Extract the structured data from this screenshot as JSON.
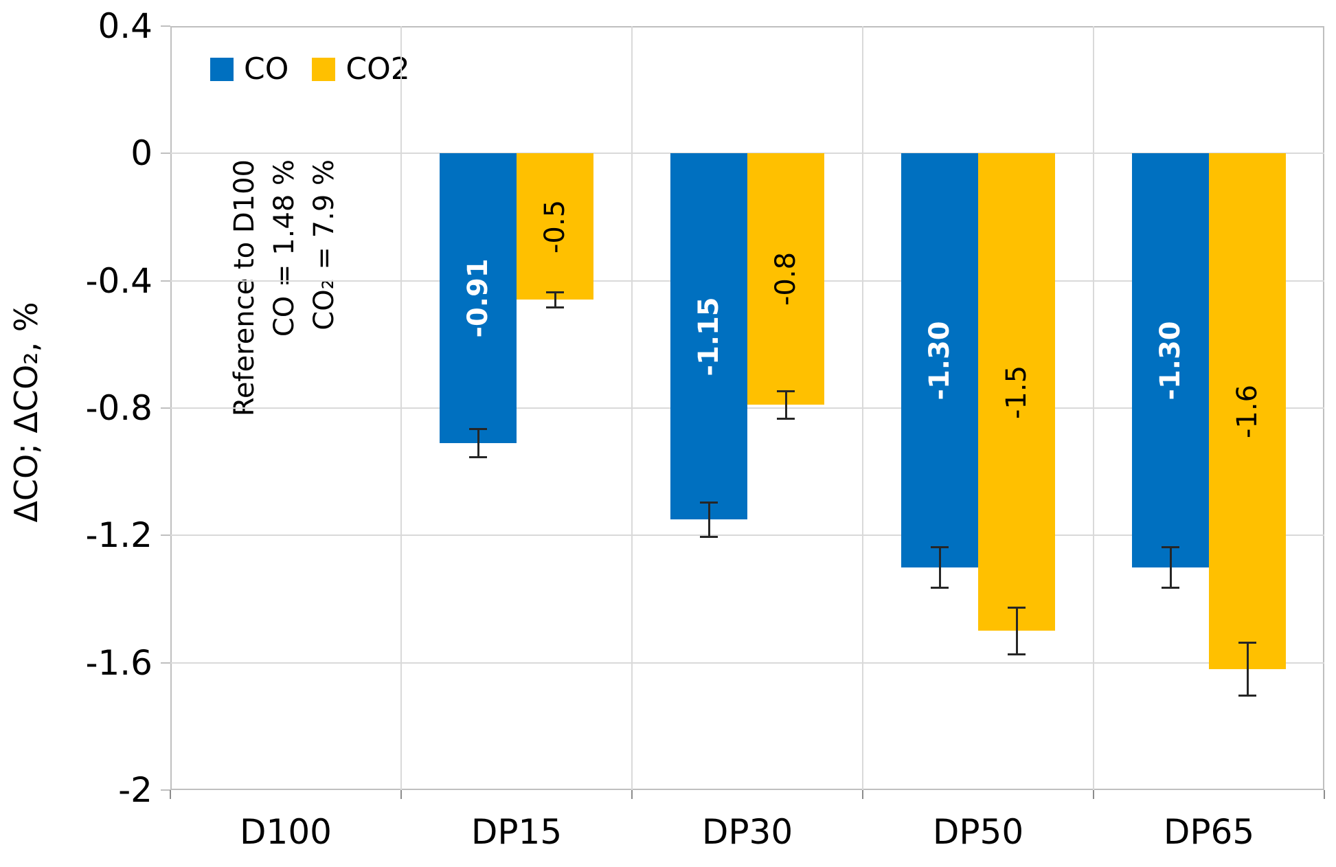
{
  "chart_data": {
    "type": "bar",
    "title": "",
    "categories": [
      "D100",
      "DP15",
      "DP30",
      "DP50",
      "DP65"
    ],
    "series": [
      {
        "name": "CO",
        "color": "#0070C0",
        "label_color": "#FFFFFF",
        "label_weight": "bold",
        "values": [
          null,
          -0.91,
          -1.15,
          -1.3,
          -1.3
        ],
        "labels": [
          "",
          "-0.91",
          "-1.15",
          "-1.30",
          "-1.30"
        ],
        "errors": [
          null,
          0.045,
          0.055,
          0.065,
          0.065
        ]
      },
      {
        "name": "CO2",
        "color": "#FFC000",
        "label_color": "#000000",
        "label_weight": "normal",
        "values": [
          null,
          -0.46,
          -0.79,
          -1.5,
          -1.62
        ],
        "labels": [
          "",
          "-0.5",
          "-0.8",
          "-1.5",
          "-1.6"
        ],
        "errors": [
          null,
          0.025,
          0.045,
          0.075,
          0.085
        ]
      }
    ],
    "xlabel": "",
    "ylabel": "ΔCO; ΔCO₂, %",
    "ylim": [
      -2,
      0.4
    ],
    "yticks": [
      0.4,
      0,
      -0.4,
      -0.8,
      -1.2,
      -1.6,
      -2
    ],
    "ytick_labels": [
      "0.4",
      "0",
      "-0.4",
      "-0.8",
      "-1.2",
      "-1.6",
      "-2"
    ],
    "grid": true,
    "legend_position": "top-left-inside",
    "annotation": {
      "lines": [
        "Reference to D100",
        "CO = 1.48 %",
        "CO₂ = 7.9 %"
      ]
    },
    "colors": {
      "gridline": "#D9D9D9",
      "plot_border": "#BFBFBF",
      "error_bar": "#262626",
      "text": "#000000"
    }
  }
}
